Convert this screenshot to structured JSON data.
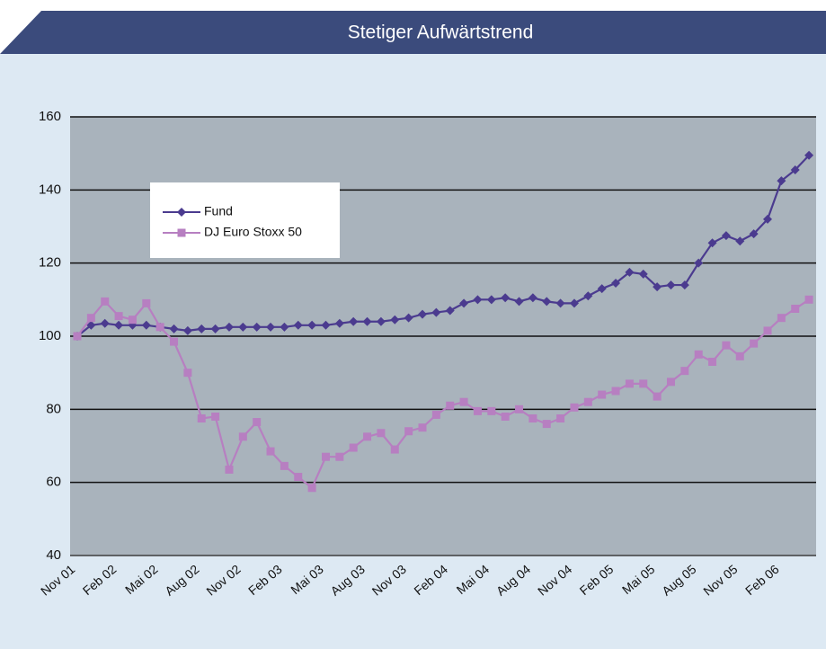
{
  "chart_data": {
    "type": "line",
    "title": "Stetiger Aufwärtstrend",
    "categories": [
      "Nov 01",
      null,
      null,
      "Feb 02",
      null,
      null,
      "Mai 02",
      null,
      null,
      "Aug 02",
      null,
      null,
      "Nov 02",
      null,
      null,
      "Feb 03",
      null,
      null,
      "Mai 03",
      null,
      null,
      "Aug 03",
      null,
      null,
      "Nov 03",
      null,
      null,
      "Feb 04",
      null,
      null,
      "Mai 04",
      null,
      null,
      "Aug 04",
      null,
      null,
      "Nov 04",
      null,
      null,
      "Feb 05",
      null,
      null,
      "Mai 05",
      null,
      null,
      "Aug 05",
      null,
      null,
      "Nov 05",
      null,
      null,
      "Feb 06",
      null,
      null
    ],
    "series": [
      {
        "name": "Fund",
        "color": "#4b3b8f",
        "marker": "diamond",
        "values": [
          100,
          103,
          103.5,
          103,
          103,
          103,
          102.5,
          102,
          101.5,
          102,
          102,
          102.5,
          102.5,
          102.5,
          102.5,
          102.5,
          103,
          103,
          103,
          103.5,
          104,
          104,
          104,
          104.5,
          105,
          106,
          106.5,
          107,
          109,
          110,
          110,
          110.5,
          109.5,
          110.5,
          109.5,
          109,
          109,
          111,
          113,
          114.5,
          117.5,
          117,
          113.5,
          114,
          114,
          120,
          125.5,
          127.5,
          126,
          128,
          132,
          142.5,
          145.5,
          149.5
        ]
      },
      {
        "name": "DJ Euro Stoxx 50",
        "color": "#b77fc1",
        "marker": "square",
        "values": [
          100,
          105,
          109.5,
          105.5,
          104.5,
          109,
          102.5,
          98.5,
          90,
          77.5,
          78,
          63.5,
          72.5,
          76.5,
          68.5,
          64.5,
          61.5,
          58.5,
          67,
          67,
          69.5,
          72.5,
          73.5,
          69,
          74,
          75,
          78.5,
          81,
          82,
          79.5,
          79.5,
          78,
          80,
          77.5,
          76,
          77.5,
          80.5,
          82,
          84,
          85,
          87,
          87,
          83.5,
          87.5,
          90.5,
          95,
          93,
          97.5,
          94.5,
          98,
          101.5,
          105,
          107.5,
          110
        ]
      }
    ],
    "ylim": [
      40,
      160
    ],
    "yticks": [
      40,
      60,
      80,
      100,
      120,
      140,
      160
    ],
    "grid": true,
    "legend": "upper left"
  }
}
